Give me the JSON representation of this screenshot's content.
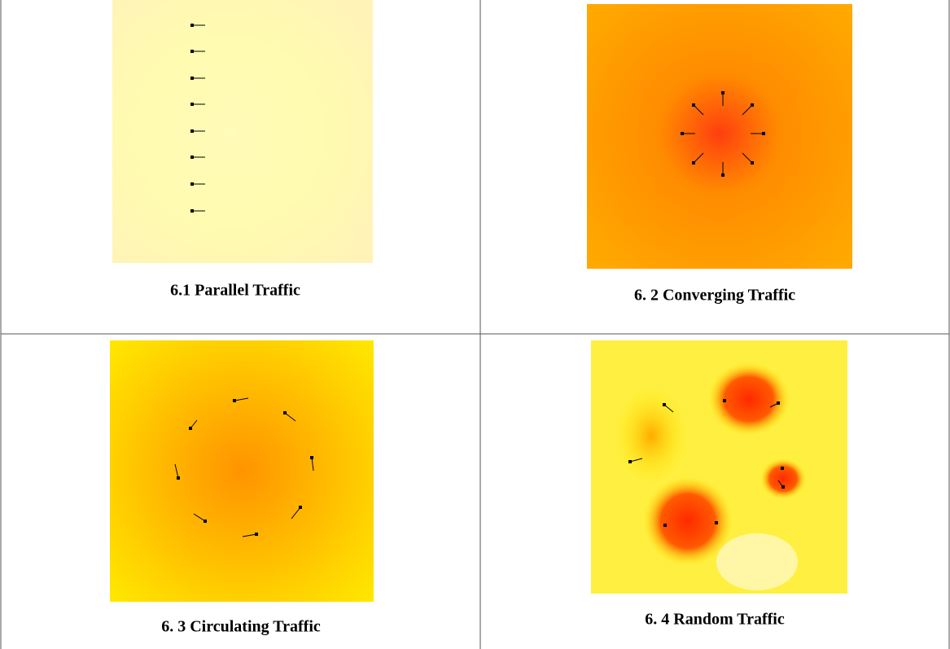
{
  "figures": [
    {
      "caption": "6.1 Parallel Traffic"
    },
    {
      "caption": "6. 2 Converging Traffic"
    },
    {
      "caption": "6. 3 Circulating Traffic"
    },
    {
      "caption": "6. 4 Random Traffic"
    }
  ]
}
